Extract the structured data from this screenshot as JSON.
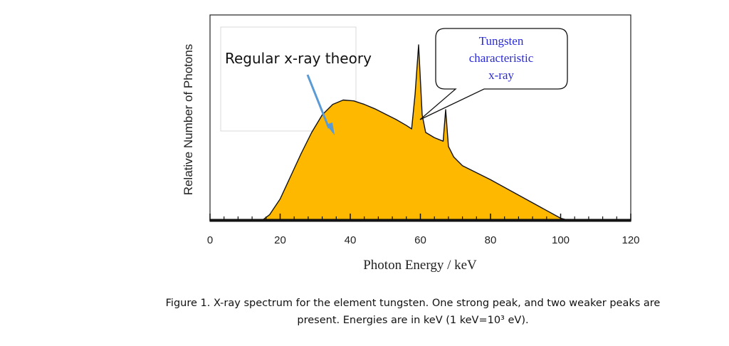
{
  "chart_data": {
    "type": "area",
    "title": "",
    "xlabel": "Photon Energy / keV",
    "ylabel": "Relative Number of Photons",
    "xlim": [
      0,
      120
    ],
    "ylim": [
      0,
      100
    ],
    "xticks": [
      0,
      20,
      40,
      60,
      80,
      100,
      120
    ],
    "grid": false,
    "series": [
      {
        "name": "X-ray spectrum (tungsten)",
        "color": "#FFB800",
        "points": [
          [
            0,
            0
          ],
          [
            15,
            0
          ],
          [
            17,
            3
          ],
          [
            20,
            12
          ],
          [
            23,
            25
          ],
          [
            26,
            38
          ],
          [
            29,
            50
          ],
          [
            32,
            60
          ],
          [
            35,
            66
          ],
          [
            38,
            68.5
          ],
          [
            41,
            68
          ],
          [
            44,
            66
          ],
          [
            47,
            63.5
          ],
          [
            50,
            60.5
          ],
          [
            53,
            57.5
          ],
          [
            56,
            54
          ],
          [
            57.5,
            52
          ],
          [
            58.5,
            72
          ],
          [
            59.5,
            100
          ],
          [
            60.5,
            60
          ],
          [
            61.5,
            50
          ],
          [
            64,
            47
          ],
          [
            66.5,
            45
          ],
          [
            67.2,
            63
          ],
          [
            68,
            42
          ],
          [
            69.5,
            36
          ],
          [
            70.5,
            34
          ],
          [
            72,
            31
          ],
          [
            80,
            23
          ],
          [
            90,
            12
          ],
          [
            100,
            1
          ],
          [
            102,
            0
          ],
          [
            120,
            0
          ]
        ]
      }
    ],
    "annotations": [
      {
        "text": "Regular x-ray theory",
        "points_to_x": 38
      },
      {
        "text": "Tungsten characteristic x-ray",
        "lines": [
          "Tungsten",
          "characteristic",
          "x-ray"
        ],
        "points_to_x": 59.5
      }
    ]
  },
  "caption": {
    "line1": "Figure 1.  X-ray spectrum for the element tungsten.  One strong peak, and two weaker peaks are",
    "line2": "present. Energies are in keV (1 keV=10³ eV)."
  },
  "colors": {
    "fill": "#FFB800",
    "outline": "#111111",
    "arrow": "#5B9BD5",
    "callout_text": "#2a2ad6"
  }
}
